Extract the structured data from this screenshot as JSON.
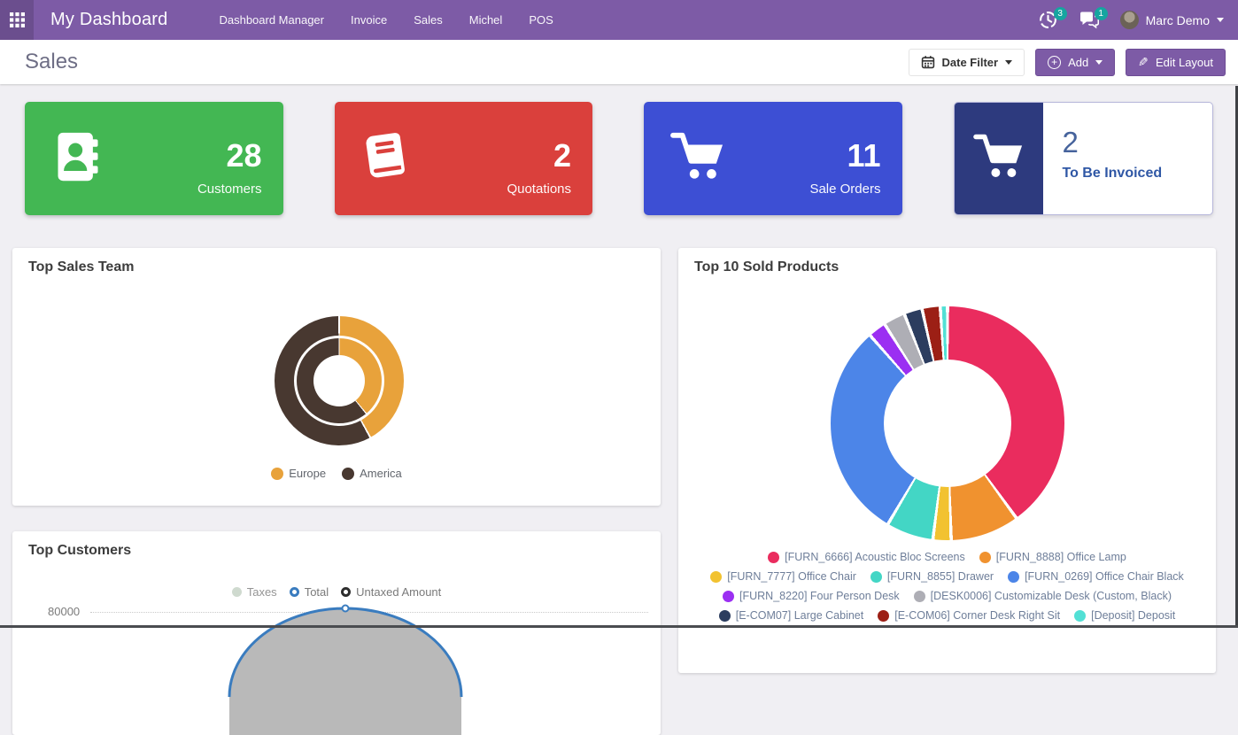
{
  "topbar": {
    "title": "My Dashboard",
    "nav_items": [
      "Dashboard Manager",
      "Invoice",
      "Sales",
      "Michel",
      "POS"
    ],
    "activity_badge": "3",
    "message_badge": "1",
    "user_name": "Marc Demo",
    "bar_color": "#7d5ba6",
    "badge_color": "#16a5a0"
  },
  "header": {
    "page_title": "Sales",
    "date_filter_label": "Date Filter",
    "add_label": "Add",
    "edit_layout_label": "Edit Layout",
    "button_color": "#7d5ba6"
  },
  "kpi_cards": [
    {
      "value": "28",
      "label": "Customers",
      "color": "#43b753",
      "icon": "contacts-icon"
    },
    {
      "value": "2",
      "label": "Quotations",
      "color": "#da403c",
      "icon": "book-icon"
    },
    {
      "value": "11",
      "label": "Sale Orders",
      "color": "#3d4fd4",
      "icon": "cart-icon"
    },
    {
      "value": "2",
      "label": "To Be Invoiced",
      "color": "#2d3a7e",
      "icon": "cart-icon",
      "style": "split",
      "value_color": "#46639c",
      "label_color": "#2f57a5"
    }
  ],
  "chart_data": [
    {
      "type": "pie",
      "variant": "donut-two-ring",
      "title": "Top Sales Team",
      "legend_position": "bottom",
      "legend": [
        "Europe",
        "America"
      ],
      "colors": {
        "Europe": "#e8a23b",
        "America": "#483830"
      },
      "series": [
        {
          "name": "outer",
          "slices": [
            {
              "label": "Europe",
              "pct": 42
            },
            {
              "label": "America",
              "pct": 58
            }
          ]
        },
        {
          "name": "inner",
          "slices": [
            {
              "label": "Europe",
              "pct": 39
            },
            {
              "label": "America",
              "pct": 61
            }
          ]
        }
      ]
    },
    {
      "type": "pie",
      "variant": "donut",
      "title": "Top 10 Sold Products",
      "legend_position": "bottom",
      "slices": [
        {
          "label": "[FURN_6666] Acoustic Bloc Screens",
          "pct": 40,
          "color": "#ea2c5e"
        },
        {
          "label": "[FURN_8888] Office Lamp",
          "pct": 9.5,
          "color": "#f0922f"
        },
        {
          "label": "[FURN_7777] Office Chair",
          "pct": 2.5,
          "color": "#f2c230"
        },
        {
          "label": "[FURN_8855] Drawer",
          "pct": 6.5,
          "color": "#43d6c5"
        },
        {
          "label": "[FURN_0269] Office Chair Black",
          "pct": 30,
          "color": "#4c85e8"
        },
        {
          "label": "[FURN_8220] Four Person Desk",
          "pct": 2.5,
          "color": "#9b2ff2"
        },
        {
          "label": "[DESK0006] Customizable Desk (Custom, Black)",
          "pct": 3,
          "color": "#aeaeb5"
        },
        {
          "label": "[E-COM07] Large Cabinet",
          "pct": 2.5,
          "color": "#2c3d5f"
        },
        {
          "label": "[E-COM06] Corner Desk Right Sit",
          "pct": 2.5,
          "color": "#9c1f15"
        },
        {
          "label": "[Deposit] Deposit",
          "pct": 1,
          "color": "#52e0d5"
        }
      ],
      "legend_rows": [
        [
          0,
          1
        ],
        [
          2,
          3,
          4
        ],
        [
          5,
          6
        ],
        [
          7,
          8,
          9
        ]
      ]
    },
    {
      "type": "line",
      "title": "Top Customers",
      "legend": [
        {
          "label": "Taxes",
          "color": "#c4d1c4",
          "style": "disabled"
        },
        {
          "label": "Total",
          "color": "#3a7cbf",
          "style": "ring"
        },
        {
          "label": "Untaxed Amount",
          "color": "#2d2d2d",
          "style": "ring"
        }
      ],
      "y_ticks": [
        "80000"
      ],
      "line_color": "#3a7cbf",
      "area_fill": "#b9b9b9",
      "visible_peak_value": 80000
    }
  ]
}
